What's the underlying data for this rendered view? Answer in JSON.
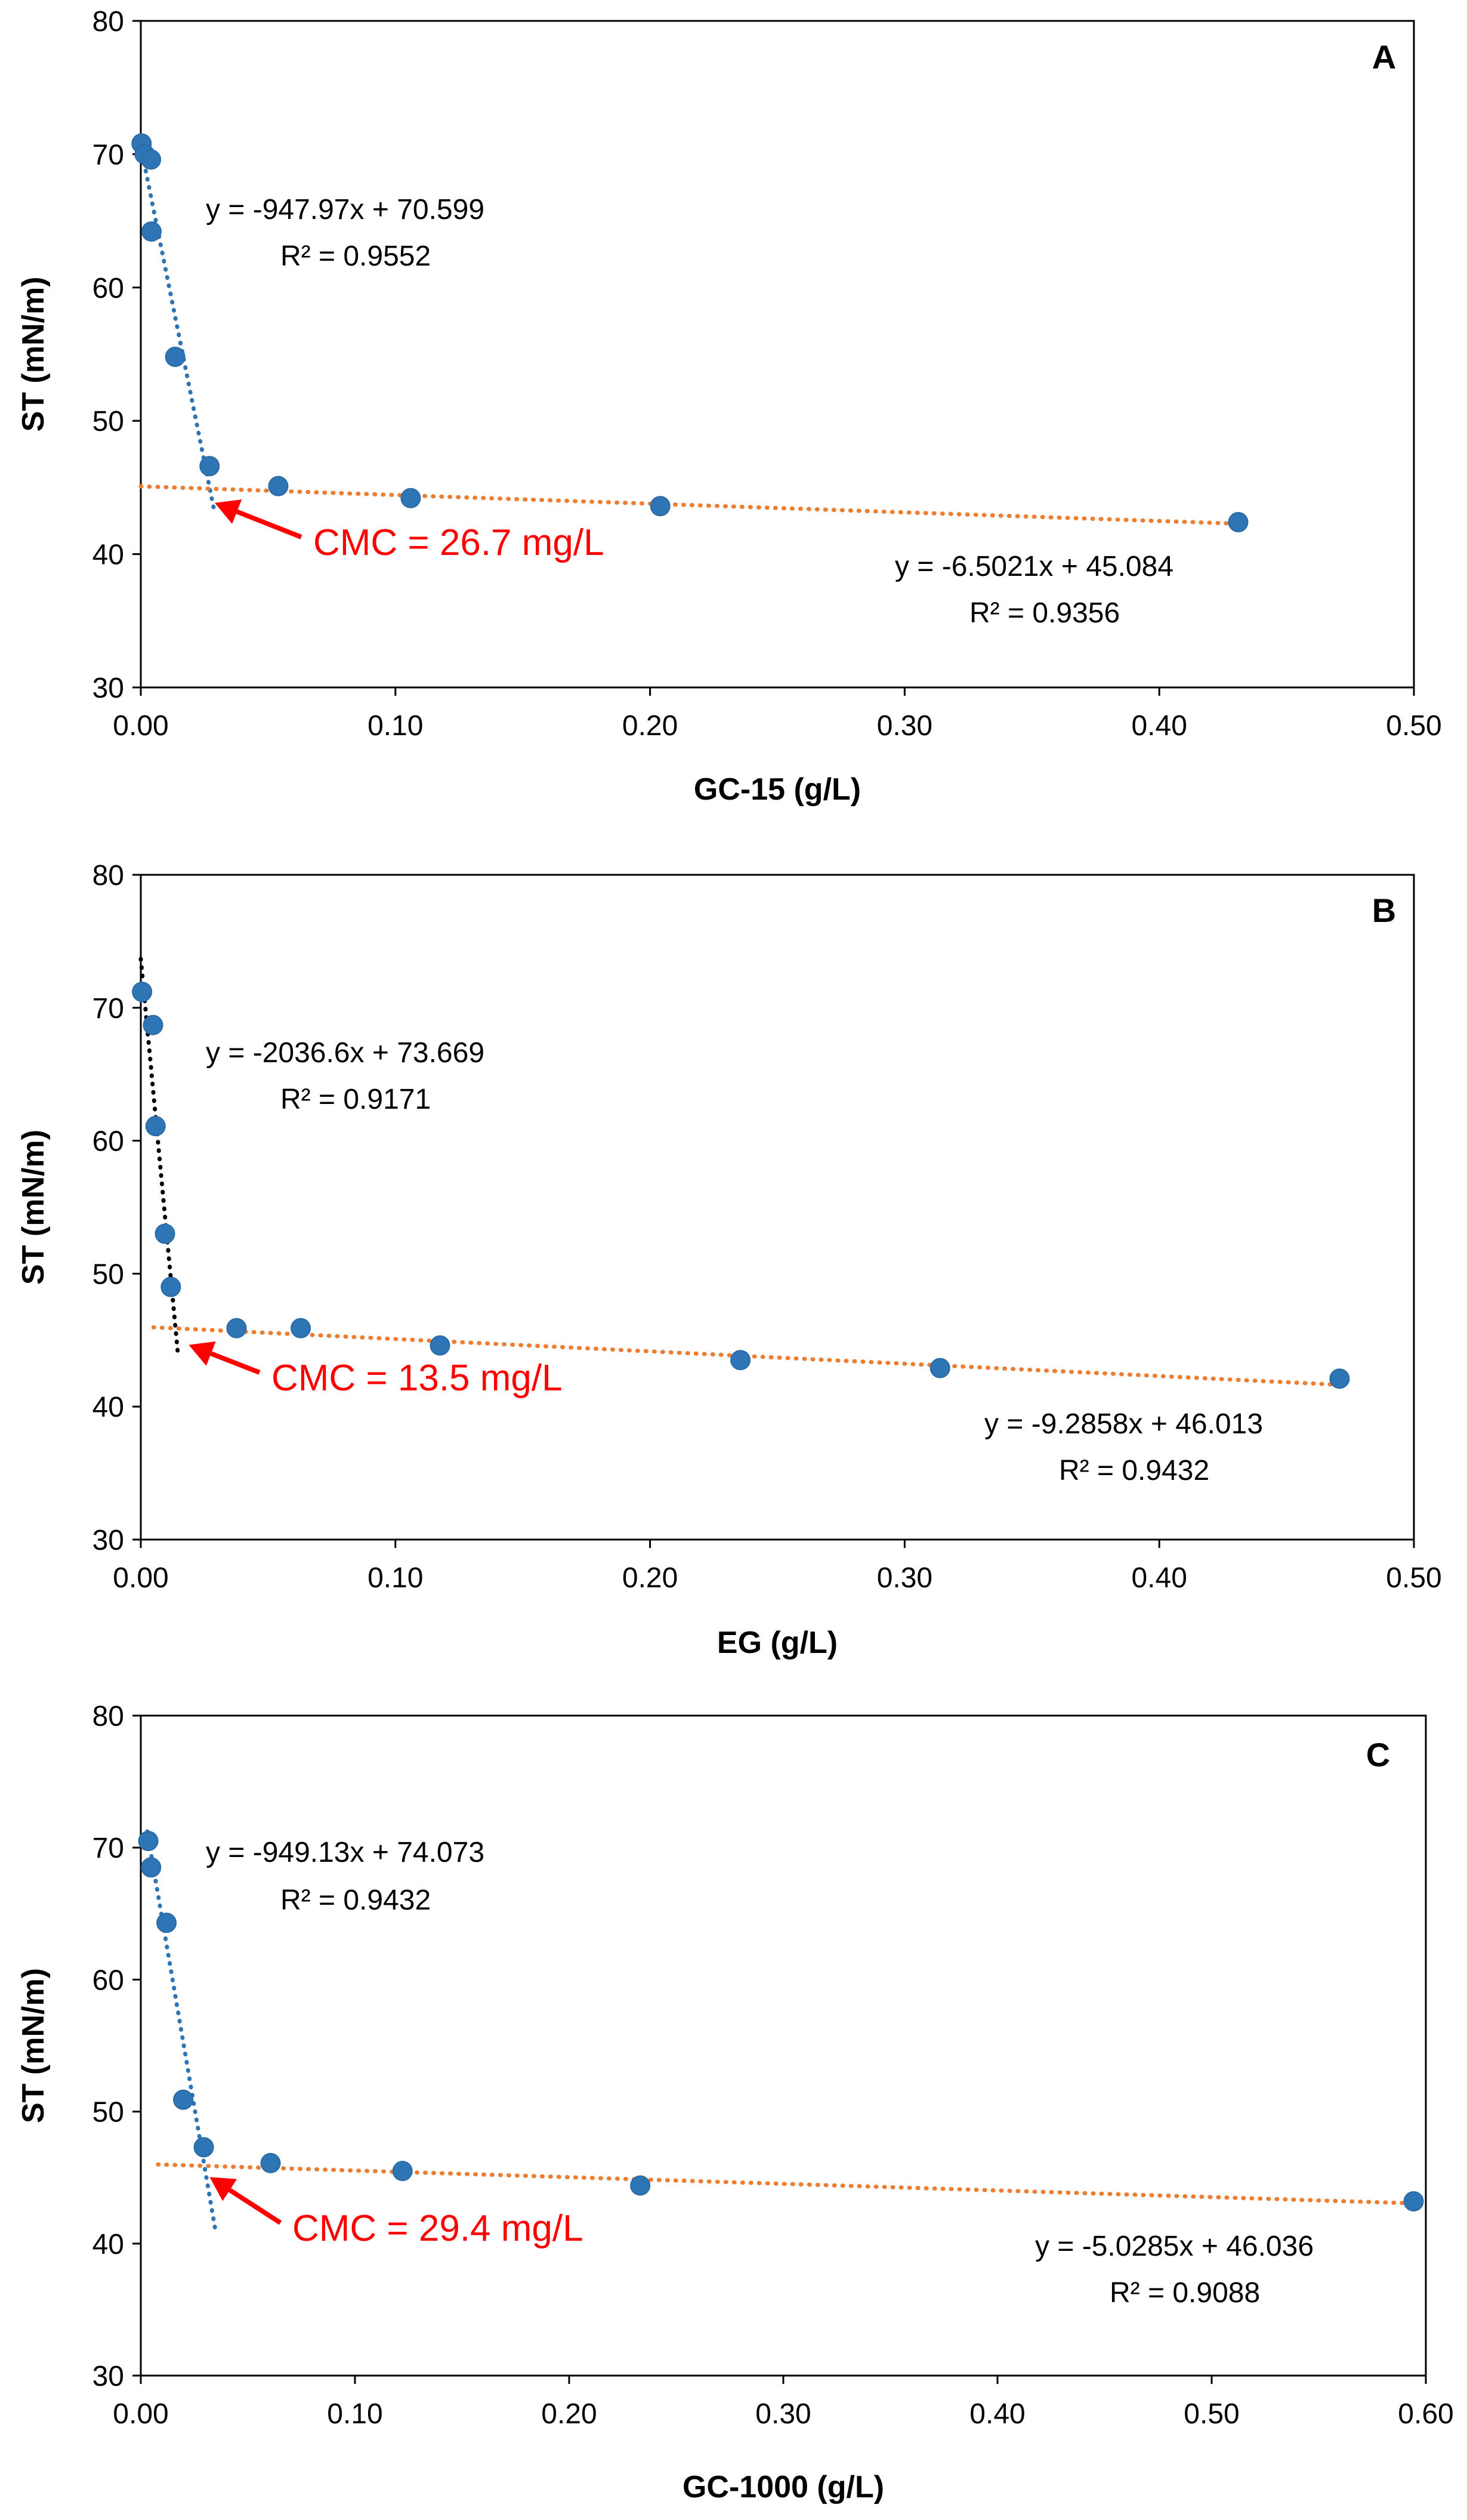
{
  "chart_data": [
    {
      "type": "scatter",
      "panel_label": "A",
      "xlabel": "GC-15 (g/L)",
      "ylabel": "ST (mN/m)",
      "xlim": [
        0,
        0.5
      ],
      "ylim": [
        30,
        80
      ],
      "xticks": [
        "0.00",
        "0.10",
        "0.20",
        "0.30",
        "0.40",
        "0.50"
      ],
      "yticks": [
        "30",
        "40",
        "50",
        "60",
        "70",
        "80"
      ],
      "grid": false,
      "points": [
        {
          "x": 0.0003,
          "y": 70.8
        },
        {
          "x": 0.0015,
          "y": 70.0
        },
        {
          "x": 0.004,
          "y": 69.6
        },
        {
          "x": 0.0042,
          "y": 64.2
        },
        {
          "x": 0.0135,
          "y": 54.8
        },
        {
          "x": 0.027,
          "y": 46.6
        },
        {
          "x": 0.054,
          "y": 45.1
        },
        {
          "x": 0.106,
          "y": 44.2
        },
        {
          "x": 0.204,
          "y": 43.6
        },
        {
          "x": 0.431,
          "y": 42.4
        }
      ],
      "trendlines": [
        {
          "slope": -947.97,
          "intercept": 70.599,
          "x_range": [
            0,
            0.029
          ],
          "color": "#2e75b6",
          "equation": "y = -947.97x + 70.599",
          "r2": "R² = 0.9552"
        },
        {
          "slope": -6.5021,
          "intercept": 45.084,
          "x_range": [
            0,
            0.431
          ],
          "color": "#ed7d31",
          "equation": "y = -6.5021x + 45.084",
          "r2": "R² = 0.9356"
        }
      ],
      "annotation": {
        "text": "CMC = 26.7 mg/L",
        "color": "#ff0000",
        "target": {
          "x": 0.0267,
          "y": 44.2
        }
      }
    },
    {
      "type": "scatter",
      "panel_label": "B",
      "xlabel": "EG (g/L)",
      "ylabel": "ST (mN/m)",
      "xlim": [
        0,
        0.5
      ],
      "ylim": [
        30,
        80
      ],
      "xticks": [
        "0.00",
        "0.10",
        "0.20",
        "0.30",
        "0.40",
        "0.50"
      ],
      "yticks": [
        "30",
        "40",
        "50",
        "60",
        "70",
        "80"
      ],
      "grid": false,
      "points": [
        {
          "x": 0.0005,
          "y": 71.2
        },
        {
          "x": 0.0048,
          "y": 68.7
        },
        {
          "x": 0.0058,
          "y": 61.1
        },
        {
          "x": 0.0095,
          "y": 53.0
        },
        {
          "x": 0.0118,
          "y": 49.0
        },
        {
          "x": 0.0376,
          "y": 45.9
        },
        {
          "x": 0.0628,
          "y": 45.9
        },
        {
          "x": 0.1175,
          "y": 44.6
        },
        {
          "x": 0.2355,
          "y": 43.5
        },
        {
          "x": 0.3139,
          "y": 42.9
        },
        {
          "x": 0.4708,
          "y": 42.1
        }
      ],
      "trendlines": [
        {
          "slope": -2036.6,
          "intercept": 73.669,
          "x_range": [
            0,
            0.0145
          ],
          "color": "#000000",
          "equation": "y = -2036.6x + 73.669",
          "r2": "R² = 0.9171"
        },
        {
          "slope": -9.2858,
          "intercept": 46.013,
          "x_range": [
            0.005,
            0.471
          ],
          "color": "#ed7d31",
          "equation": "y = -9.2858x + 46.013",
          "r2": "R² = 0.9432"
        }
      ],
      "annotation": {
        "text": "CMC = 13.5 mg/L",
        "color": "#ff0000",
        "target": {
          "x": 0.0165,
          "y": 45.0
        }
      }
    },
    {
      "type": "scatter",
      "panel_label": "C",
      "xlabel": "GC-1000 (g/L)",
      "ylabel": "ST (mN/m)",
      "xlim": [
        0,
        0.6
      ],
      "ylim": [
        30,
        80
      ],
      "xticks": [
        "0.00",
        "0.10",
        "0.20",
        "0.30",
        "0.40",
        "0.50",
        "0.60"
      ],
      "yticks": [
        "30",
        "40",
        "50",
        "60",
        "70",
        "80"
      ],
      "grid": false,
      "points": [
        {
          "x": 0.0035,
          "y": 70.5
        },
        {
          "x": 0.0048,
          "y": 68.5
        },
        {
          "x": 0.012,
          "y": 64.3
        },
        {
          "x": 0.0198,
          "y": 50.9
        },
        {
          "x": 0.0294,
          "y": 47.3
        },
        {
          "x": 0.0606,
          "y": 46.1
        },
        {
          "x": 0.1222,
          "y": 45.5
        },
        {
          "x": 0.2332,
          "y": 44.4
        },
        {
          "x": 0.5943,
          "y": 43.2
        }
      ],
      "trendlines": [
        {
          "slope": -949.13,
          "intercept": 74.073,
          "x_range": [
            0.003,
            0.0347
          ],
          "color": "#2e75b6",
          "equation": "y = -949.13x + 74.073",
          "r2": "R² = 0.9432"
        },
        {
          "slope": -5.0285,
          "intercept": 46.036,
          "x_range": [
            0.008,
            0.594
          ],
          "color": "#ed7d31",
          "equation": "y = -5.0285x + 46.036",
          "r2": "R² = 0.9088"
        }
      ],
      "annotation": {
        "text": "CMC = 29.4 mg/L",
        "color": "#ff0000",
        "target": {
          "x": 0.0294,
          "y": 45.4
        }
      }
    }
  ],
  "colors": {
    "marker": "#2e75b6",
    "annotation": "#ff0000",
    "text": "#000000"
  }
}
